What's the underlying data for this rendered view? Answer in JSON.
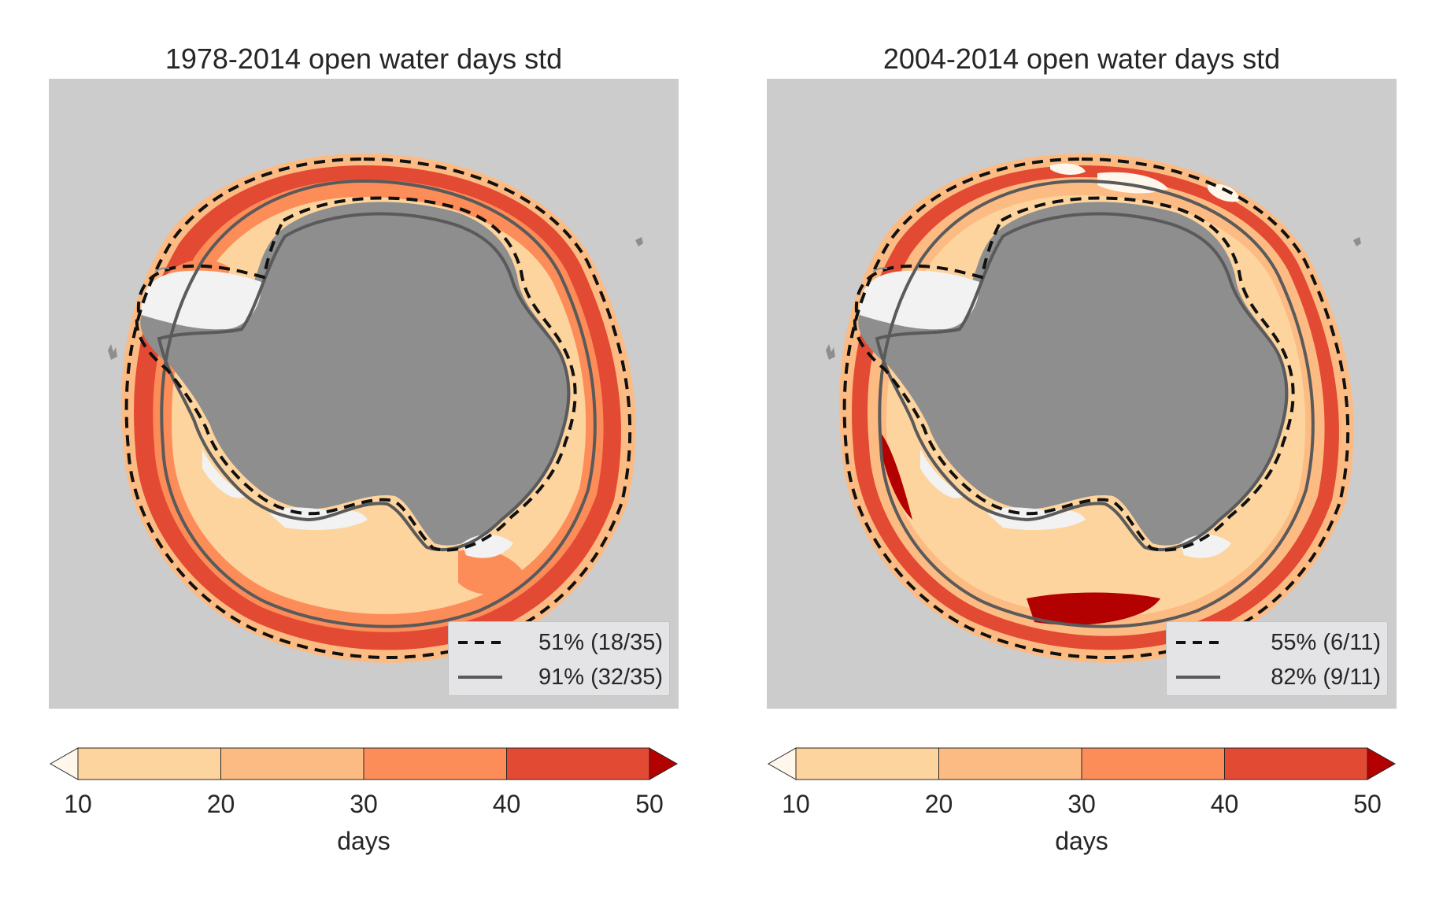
{
  "figure": {
    "panels": [
      {
        "title": "1978-2014 open water days std",
        "legend": [
          {
            "style": "dashed",
            "color": "#111111",
            "label": "51% (18/35)"
          },
          {
            "style": "solid",
            "color": "#5a5a5a",
            "label": "91% (32/35)"
          }
        ]
      },
      {
        "title": "2004-2014 open water days std",
        "legend": [
          {
            "style": "dashed",
            "color": "#111111",
            "label": "55% (6/11)"
          },
          {
            "style": "solid",
            "color": "#5a5a5a",
            "label": "82% (9/11)"
          }
        ]
      }
    ],
    "colorbar": {
      "label": "days",
      "ticks": [
        "10",
        "20",
        "30",
        "40",
        "50"
      ],
      "bins": [
        {
          "range": [
            10,
            20
          ],
          "color": "#fdd49e"
        },
        {
          "range": [
            20,
            30
          ],
          "color": "#fdbb84"
        },
        {
          "range": [
            30,
            40
          ],
          "color": "#fc8d59"
        },
        {
          "range": [
            40,
            50
          ],
          "color": "#e34a33"
        }
      ],
      "under_color": "#fff7ec",
      "over_color": "#b30000"
    },
    "colors": {
      "background": "#cccccc",
      "antarctica": "#8e8e8e",
      "ice_shelf": "#f2f2f2",
      "contour_dashed": "#111111",
      "contour_solid": "#5a5a5a"
    }
  }
}
